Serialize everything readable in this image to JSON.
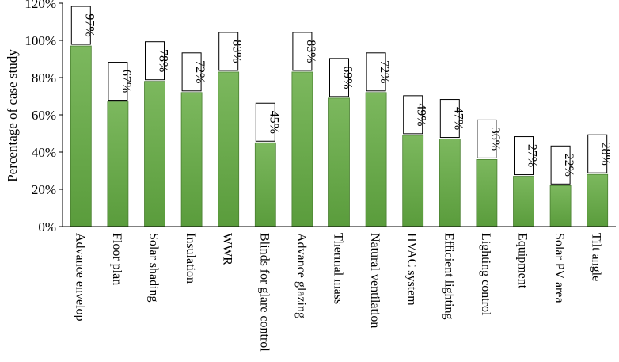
{
  "chart_data": {
    "type": "bar",
    "title": "",
    "xlabel": "",
    "ylabel": "Percentage of case study",
    "ylim": [
      0,
      120
    ],
    "yticks": [
      "0%",
      "20%",
      "40%",
      "60%",
      "80%",
      "100%",
      "120%"
    ],
    "grid": false,
    "legend": "none",
    "bar_color": "#6aa84f",
    "categories": [
      "Advance envelop",
      "Floor plan",
      "Solar shading",
      "Insulation",
      "WWR",
      "Blinds for glare control",
      "Advance glazing",
      "Thermal mass",
      "Natural ventilation",
      "HVAC system",
      "Efficient lighting",
      "Lighting control",
      "Equipment",
      "Solar PV area",
      "Tilt angle"
    ],
    "values": [
      97,
      67,
      78,
      72,
      83,
      45,
      83,
      69,
      72,
      49,
      47,
      36,
      27,
      22,
      28
    ],
    "data_labels": [
      "97%",
      "67%",
      "78%",
      "72%",
      "83%",
      "45%",
      "83%",
      "69%",
      "72%",
      "49%",
      "47%",
      "36%",
      "27%",
      "22%",
      "28%"
    ]
  }
}
